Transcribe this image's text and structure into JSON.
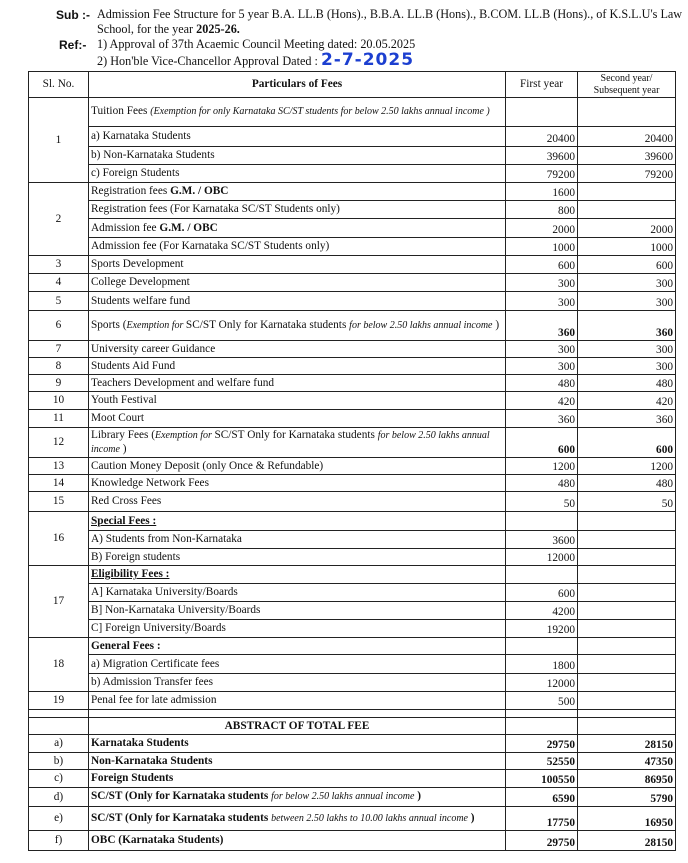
{
  "header": {
    "sub_label": "Sub :-",
    "sub_line1": "Admission Fee Structure for 5 year B.A. LL.B (Hons)., B.B.A. LL.B (Hons)., B.COM. LL.B (Hons)., of K.S.L.U's Law",
    "sub_line2_prefix": "School, for the year ",
    "sub_year": "2025-26.",
    "ref_label": "Ref:-",
    "ref1": "1)  Approval of 37th Acaemic Council Meeting dated: 20.05.2025",
    "ref2": "2)  Hon'ble Vice-Chancellor Approval Dated : ",
    "ref2_handwritten_date": "2-7-2025"
  },
  "table": {
    "columns": [
      "Sl. No.",
      "Particulars of Fees",
      "First year",
      "Second year/ Subsequent year"
    ],
    "groups": [
      {
        "sl": "1",
        "rows": [
          {
            "parts": [
              [
                "Tuition Fees ",
                ""
              ],
              [
                "(Exemption for only Karnataka SC/ST students for below 2.50 lakhs annual income )",
                "i"
              ]
            ],
            "first": "",
            "second": ""
          },
          {
            "parts": [
              [
                "a)   Karnataka Students",
                ""
              ]
            ],
            "first": "20400",
            "second": "20400"
          },
          {
            "parts": [
              [
                "b)   Non-Karnataka Students",
                ""
              ]
            ],
            "first": "39600",
            "second": "39600"
          },
          {
            "parts": [
              [
                "c)    Foreign Students",
                ""
              ]
            ],
            "first": "79200",
            "second": "79200"
          }
        ]
      },
      {
        "sl": "2",
        "rows": [
          {
            "parts": [
              [
                "Registration fees ",
                ""
              ],
              [
                "G.M. / OBC",
                "b"
              ]
            ],
            "first": "1600",
            "second": ""
          },
          {
            "parts": [
              [
                "Registration fees (For Karnataka SC/ST Students only)",
                ""
              ]
            ],
            "first": "800",
            "second": ""
          },
          {
            "parts": [
              [
                "Admission fee ",
                ""
              ],
              [
                "G.M. / OBC",
                "b"
              ]
            ],
            "first": "2000",
            "second": "2000"
          },
          {
            "parts": [
              [
                "Admission fee  (For Karnataka SC/ST Students only)",
                ""
              ]
            ],
            "first": "1000",
            "second": "1000"
          }
        ]
      },
      {
        "sl": "3",
        "rows": [
          {
            "parts": [
              [
                "Sports Development",
                ""
              ]
            ],
            "first": "600",
            "second": "600"
          }
        ]
      },
      {
        "sl": "4",
        "rows": [
          {
            "parts": [
              [
                "College Development",
                ""
              ]
            ],
            "first": "300",
            "second": "300"
          }
        ]
      },
      {
        "sl": "5",
        "rows": [
          {
            "parts": [
              [
                "Students welfare fund",
                ""
              ]
            ],
            "first": "300",
            "second": "300"
          }
        ]
      },
      {
        "sl": "6",
        "rows": [
          {
            "parts": [
              [
                "Sports  (",
                ""
              ],
              [
                "Exemption for ",
                "i"
              ],
              [
                " SC/ST Only for Karnataka students ",
                ""
              ],
              [
                "for below 2.50 lakhs annual income",
                "i"
              ],
              [
                " )",
                ""
              ]
            ],
            "first": "360",
            "second": "360",
            "bold_nums": true
          }
        ]
      },
      {
        "sl": "7",
        "rows": [
          {
            "parts": [
              [
                "University career Guidance",
                ""
              ]
            ],
            "first": "300",
            "second": "300"
          }
        ]
      },
      {
        "sl": "8",
        "rows": [
          {
            "parts": [
              [
                "Students Aid Fund",
                ""
              ]
            ],
            "first": "300",
            "second": "300"
          }
        ]
      },
      {
        "sl": "9",
        "rows": [
          {
            "parts": [
              [
                "Teachers Development and welfare fund",
                ""
              ]
            ],
            "first": "480",
            "second": "480"
          }
        ]
      },
      {
        "sl": "10",
        "rows": [
          {
            "parts": [
              [
                "Youth Festival",
                ""
              ]
            ],
            "first": "420",
            "second": "420"
          }
        ]
      },
      {
        "sl": "11",
        "rows": [
          {
            "parts": [
              [
                "Moot Court",
                ""
              ]
            ],
            "first": "360",
            "second": "360"
          }
        ]
      },
      {
        "sl": "12",
        "rows": [
          {
            "parts": [
              [
                "Library Fees  (",
                ""
              ],
              [
                "Exemption for ",
                "i"
              ],
              [
                " SC/ST Only for Karnataka students ",
                ""
              ],
              [
                "for below 2.50 lakhs annual income",
                "i"
              ],
              [
                " )",
                ""
              ]
            ],
            "first": "600",
            "second": "600",
            "bold_nums": true
          }
        ]
      },
      {
        "sl": "13",
        "rows": [
          {
            "parts": [
              [
                "Caution Money Deposit (only Once & Refundable)",
                ""
              ]
            ],
            "first": "1200",
            "second": "1200"
          }
        ]
      },
      {
        "sl": "14",
        "rows": [
          {
            "parts": [
              [
                "Knowledge Network Fees",
                ""
              ]
            ],
            "first": "480",
            "second": "480"
          }
        ]
      },
      {
        "sl": "15",
        "rows": [
          {
            "parts": [
              [
                "Red Cross Fees",
                ""
              ]
            ],
            "first": "50",
            "second": "50"
          }
        ]
      },
      {
        "sl": "16",
        "rows": [
          {
            "parts": [
              [
                "Special Fees :",
                "u"
              ]
            ],
            "first": "",
            "second": ""
          },
          {
            "parts": [
              [
                "A) Students from Non-Karnataka",
                ""
              ]
            ],
            "first": "3600",
            "second": ""
          },
          {
            "parts": [
              [
                "B)  Foreign students",
                ""
              ]
            ],
            "first": "12000",
            "second": ""
          }
        ]
      },
      {
        "sl": "17",
        "rows": [
          {
            "parts": [
              [
                "Eligibility Fees :",
                "u"
              ]
            ],
            "first": "",
            "second": ""
          },
          {
            "parts": [
              [
                "A] Karnataka University/Boards",
                ""
              ]
            ],
            "first": "600",
            "second": ""
          },
          {
            "parts": [
              [
                "B] Non-Karnataka University/Boards",
                ""
              ]
            ],
            "first": "4200",
            "second": ""
          },
          {
            "parts": [
              [
                "C] Foreign University/Boards",
                ""
              ]
            ],
            "first": "19200",
            "second": ""
          }
        ]
      },
      {
        "sl": "18",
        "rows": [
          {
            "parts": [
              [
                "General Fees :",
                "b"
              ]
            ],
            "first": "",
            "second": ""
          },
          {
            "parts": [
              [
                "a) Migration Certificate fees",
                ""
              ]
            ],
            "first": "1800",
            "second": ""
          },
          {
            "parts": [
              [
                "b) Admission Transfer fees",
                ""
              ]
            ],
            "first": "12000",
            "second": ""
          }
        ]
      },
      {
        "sl": "19",
        "rows": [
          {
            "parts": [
              [
                "Penal fee for late admission",
                ""
              ]
            ],
            "first": "500",
            "second": ""
          }
        ]
      },
      {
        "sl": "",
        "rows": [
          {
            "parts": [],
            "first": "",
            "second": ""
          }
        ]
      },
      {
        "sl": "",
        "rows": [
          {
            "parts": [
              [
                "ABSTRACT OF TOTAL FEE",
                "b"
              ]
            ],
            "first": "",
            "second": "",
            "center": true
          }
        ]
      },
      {
        "sl": "a)",
        "rows": [
          {
            "parts": [
              [
                "Karnataka Students",
                "b"
              ]
            ],
            "first": "29750",
            "second": "28150",
            "bold_nums": true
          }
        ]
      },
      {
        "sl": "b)",
        "rows": [
          {
            "parts": [
              [
                "Non-Karnataka Students",
                "b"
              ]
            ],
            "first": "52550",
            "second": "47350",
            "bold_nums": true
          }
        ]
      },
      {
        "sl": "c)",
        "rows": [
          {
            "parts": [
              [
                "Foreign Students",
                "b"
              ]
            ],
            "first": "100550",
            "second": "86950",
            "bold_nums": true
          }
        ]
      },
      {
        "sl": "d)",
        "rows": [
          {
            "parts": [
              [
                "SC/ST (Only for Karnataka students ",
                "b"
              ],
              [
                "for below 2.50 lakhs annual income",
                "i"
              ],
              [
                " )",
                "b"
              ]
            ],
            "first": "6590",
            "second": "5790",
            "bold_nums": true
          }
        ]
      },
      {
        "sl": "e)",
        "rows": [
          {
            "parts": [
              [
                "SC/ST  (Only for Karnataka students  ",
                "b"
              ],
              [
                "between 2.50 lakhs to 10.00 lakhs annual income",
                "i"
              ],
              [
                " )",
                "b"
              ]
            ],
            "first": "17750",
            "second": "16950",
            "bold_nums": true
          }
        ]
      },
      {
        "sl": "f)",
        "rows": [
          {
            "parts": [
              [
                "OBC (Karnataka Students)",
                "b"
              ]
            ],
            "first": "29750",
            "second": "28150",
            "bold_nums": true
          }
        ]
      }
    ]
  }
}
